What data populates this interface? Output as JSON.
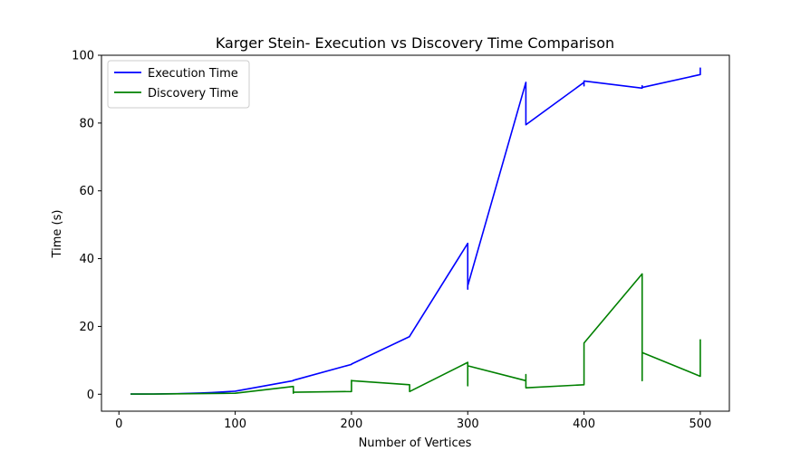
{
  "chart_data": {
    "type": "line",
    "title": "Karger Stein- Execution vs Discovery Time Comparison",
    "xlabel": "Number of Vertices",
    "ylabel": "Time (s)",
    "xlim": [
      -15,
      525
    ],
    "ylim": [
      -5,
      100
    ],
    "xticks": [
      0,
      100,
      200,
      300,
      400,
      500
    ],
    "yticks": [
      0,
      20,
      40,
      60,
      80,
      100
    ],
    "grid": false,
    "legend_position": "top-left",
    "series": [
      {
        "name": "Execution Time",
        "color": "#0000ff",
        "x": [
          10,
          20,
          30,
          40,
          50,
          60,
          70,
          80,
          90,
          100,
          150,
          150,
          200,
          200,
          250,
          250,
          300,
          300,
          300,
          300,
          350,
          350,
          400,
          400,
          400,
          450,
          450,
          450,
          500,
          500,
          500
        ],
        "y": [
          0.05,
          0.06,
          0.08,
          0.12,
          0.17,
          0.25,
          0.35,
          0.5,
          0.7,
          0.9,
          4.0,
          4.1,
          8.8,
          8.9,
          17.0,
          17.1,
          44.5,
          31.0,
          34.0,
          32.0,
          92.0,
          79.5,
          92.0,
          91.0,
          92.4,
          90.3,
          91.0,
          90.5,
          94.3,
          96.2,
          95.0
        ]
      },
      {
        "name": "Discovery Time",
        "color": "#008000",
        "x": [
          10,
          20,
          30,
          40,
          50,
          60,
          70,
          80,
          90,
          100,
          150,
          150,
          150,
          200,
          200,
          200,
          250,
          250,
          300,
          300,
          300,
          300,
          350,
          350,
          350,
          400,
          400,
          450,
          450,
          450,
          450,
          500,
          500
        ],
        "y": [
          0.05,
          0.06,
          0.07,
          0.1,
          0.12,
          0.15,
          0.18,
          0.22,
          0.25,
          0.3,
          2.3,
          0.3,
          0.6,
          0.8,
          4.1,
          4.0,
          2.8,
          0.8,
          9.4,
          2.5,
          8.5,
          8.4,
          4.0,
          5.8,
          1.9,
          2.8,
          15.1,
          35.5,
          4.0,
          12.5,
          12.3,
          5.3,
          16.2
        ]
      }
    ]
  }
}
